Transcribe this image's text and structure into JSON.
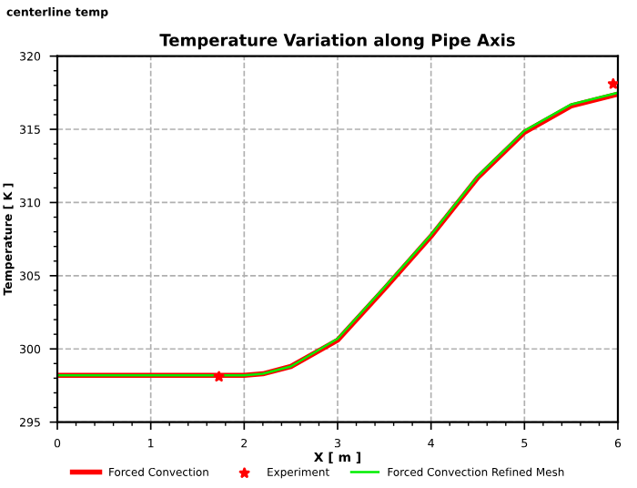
{
  "chart_data": {
    "type": "line",
    "title": "Temperature Variation along Pipe Axis",
    "xlabel": "X [ m ]",
    "ylabel": "Temperature [ K ]",
    "annotations": [
      "centerline temp"
    ],
    "xlim": [
      0,
      6
    ],
    "xticks": [
      0,
      1,
      2,
      3,
      4,
      5,
      6
    ],
    "ylim": [
      295,
      320
    ],
    "yticks": [
      295,
      300,
      305,
      310,
      315,
      320
    ],
    "grid": true,
    "legend": "bottom",
    "series": [
      {
        "name": "Forced Convection",
        "color": "#ff0000",
        "x": [
          0,
          1,
          2,
          2.2,
          2.5,
          3,
          3.5,
          4,
          4.5,
          5,
          5.5,
          6
        ],
        "values": [
          298.2,
          298.2,
          298.2,
          298.3,
          298.8,
          300.6,
          304.1,
          307.7,
          311.7,
          314.8,
          316.6,
          317.4
        ]
      },
      {
        "name": "Experiment",
        "type": "scatter",
        "marker": "star",
        "color": "#ff0000",
        "x": [
          1.73,
          5.95
        ],
        "values": [
          298.1,
          318.1
        ]
      },
      {
        "name": "Forced Convection Refined Mesh",
        "color": "#00ee00",
        "x": [
          0,
          1,
          2,
          2.2,
          2.5,
          3,
          3.5,
          4,
          4.5,
          5,
          5.5,
          6
        ],
        "values": [
          298.2,
          298.2,
          298.2,
          298.3,
          298.8,
          300.7,
          304.2,
          307.8,
          311.8,
          314.9,
          316.7,
          317.5
        ]
      }
    ]
  }
}
